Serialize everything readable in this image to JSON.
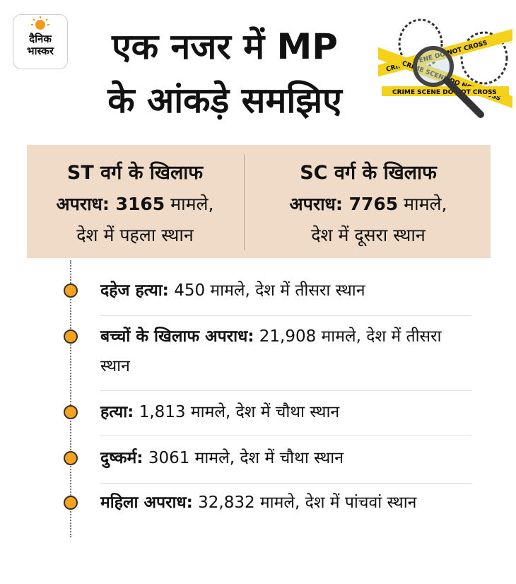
{
  "logo": {
    "line1": "दैनिक",
    "line2": "भास्कर"
  },
  "title": {
    "line1": "एक नजर में MP",
    "line2": "के आंकड़े समझिए"
  },
  "tape_text": "CRIME SCENE DO NOT CROSS",
  "boxes": [
    {
      "heading": "ST वर्ग के खिलाफ",
      "bold": "अपराध: 3165",
      "text": "मामले,",
      "rank": "देश में पहला स्थान"
    },
    {
      "heading": "SC वर्ग के खिलाफ",
      "bold": "अपराध: 7765",
      "text": "मामले,",
      "rank": "देश में दूसरा स्थान"
    }
  ],
  "items": [
    {
      "label": "दहेज हत्या:",
      "text": "450 मामले, देश में तीसरा स्थान"
    },
    {
      "label": "बच्चों के खिलाफ अपराध:",
      "text": "21,908 मामले, देश में तीसरा स्थान"
    },
    {
      "label": "हत्या:",
      "text": "1,813 मामले, देश में चौथा स्थान"
    },
    {
      "label": "दुष्कर्म:",
      "text": "3061 मामले, देश में चौथा स्थान"
    },
    {
      "label": "महिला अपराध:",
      "text": "32,832 मामले, देश में पांचवां स्थान"
    }
  ]
}
